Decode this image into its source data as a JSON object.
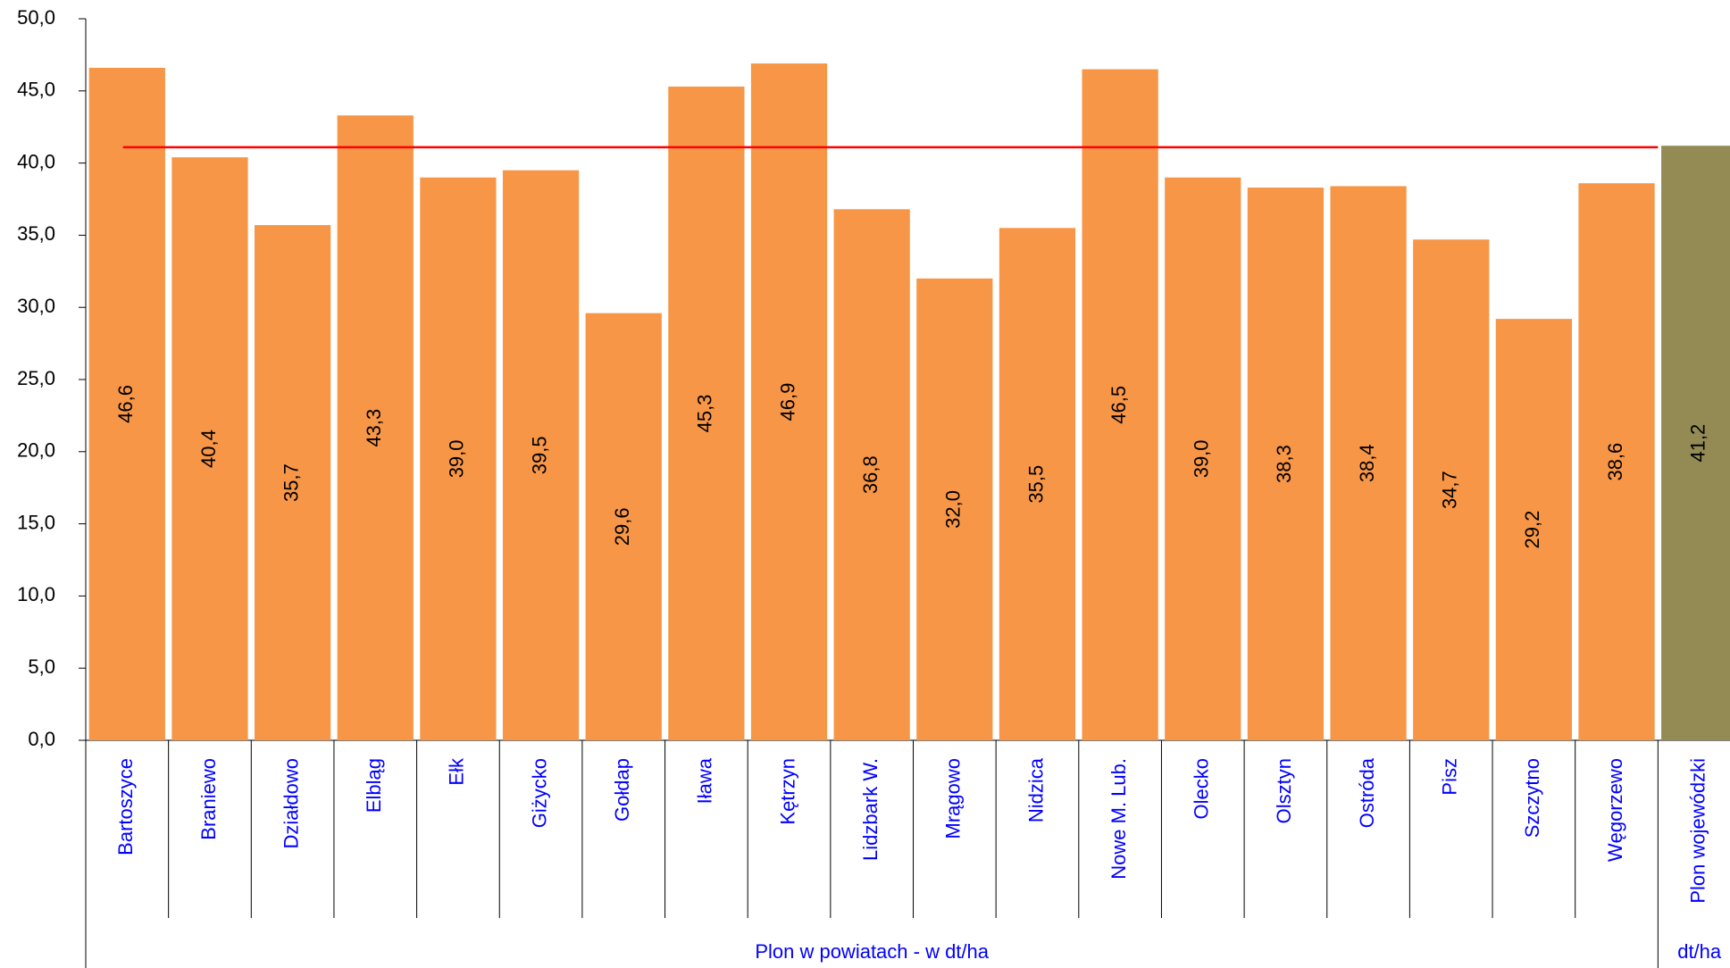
{
  "chart_data": {
    "type": "bar",
    "categories": [
      "Bartoszyce",
      "Braniewo",
      "Działdowo",
      "Elbląg",
      "Ełk",
      "Giżycko",
      "Gołdap",
      "Iława",
      "Kętrzyn",
      "Lidzbark W.",
      "Mrągowo",
      "Nidzica",
      "Nowe M. Lub.",
      "Olecko",
      "Olsztyn",
      "Ostróda",
      "Pisz",
      "Szczytno",
      "Węgorzewo",
      "Plon wojewódzki"
    ],
    "values": [
      46.6,
      40.4,
      35.7,
      43.3,
      39.0,
      39.5,
      29.6,
      45.3,
      46.9,
      36.8,
      32.0,
      35.5,
      46.5,
      39.0,
      38.3,
      38.4,
      34.7,
      29.2,
      38.6,
      41.2
    ],
    "value_labels": [
      "46,6",
      "40,4",
      "35,7",
      "43,3",
      "39,0",
      "39,5",
      "29,6",
      "45,3",
      "46,9",
      "36,8",
      "32,0",
      "35,5",
      "46,5",
      "39,0",
      "38,3",
      "38,4",
      "34,7",
      "29,2",
      "38,6",
      "41,2"
    ],
    "colors": [
      "#f79646",
      "#f79646",
      "#f79646",
      "#f79646",
      "#f79646",
      "#f79646",
      "#f79646",
      "#f79646",
      "#f79646",
      "#f79646",
      "#f79646",
      "#f79646",
      "#f79646",
      "#f79646",
      "#f79646",
      "#f79646",
      "#f79646",
      "#f79646",
      "#f79646",
      "#948a54"
    ],
    "group_labels": [
      "Plon w powiatach - w dt/ha",
      "dt/ha"
    ],
    "reference_line": {
      "value": 41.1,
      "color": "#ff0000"
    },
    "ylim": [
      0,
      50
    ],
    "yticks": [
      {
        "value": 0,
        "label": "0,0"
      },
      {
        "value": 5,
        "label": "5,0"
      },
      {
        "value": 10,
        "label": "10,0"
      },
      {
        "value": 15,
        "label": "15,0"
      },
      {
        "value": 20,
        "label": "20,0"
      },
      {
        "value": 25,
        "label": "25,0"
      },
      {
        "value": 30,
        "label": "30,0"
      },
      {
        "value": 35,
        "label": "35,0"
      },
      {
        "value": 40,
        "label": "40,0"
      },
      {
        "value": 45,
        "label": "45,0"
      },
      {
        "value": 50,
        "label": "50,0"
      }
    ],
    "grid": false
  }
}
